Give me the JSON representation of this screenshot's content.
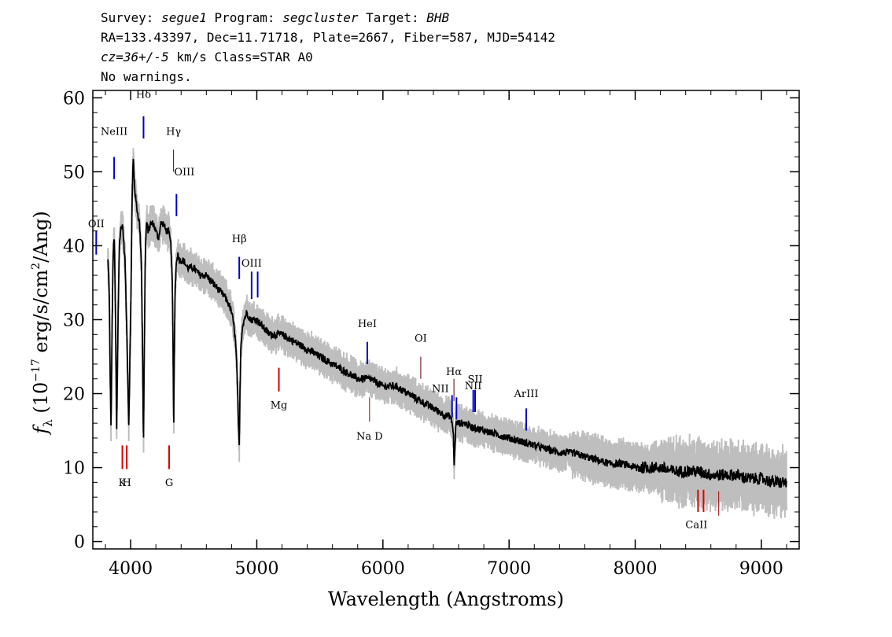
{
  "header": {
    "line1": {
      "survey_label": "Survey: ",
      "survey": "segue1",
      "program_label": " Program: ",
      "program": "segcluster",
      "target_label": " Target: ",
      "target": "BHB"
    },
    "line2": "RA=133.43397, Dec=11.71718, Plate=2667, Fiber=587, MJD=54142",
    "line3": {
      "cz": "cz=36+/-5",
      "rest": " km/s Class=STAR A0"
    },
    "line4": "No warnings."
  },
  "chart_data": {
    "type": "line",
    "xlabel": "Wavelength (Angstroms)",
    "ylabel": "f_λ (10^-17 erg/s/cm^2/Ang)",
    "xlim": [
      3700,
      9300
    ],
    "ylim": [
      -1,
      61
    ],
    "xticks": [
      4000,
      5000,
      6000,
      7000,
      8000,
      9000
    ],
    "yticks": [
      0,
      10,
      20,
      30,
      40,
      50,
      60
    ],
    "grid": false,
    "legend": "none",
    "colors": {
      "flux": "#000000",
      "error": "#bebebe",
      "emission": "#0000cc",
      "absorption": "#dd0000"
    },
    "series": [
      {
        "x": [
          3820,
          3830,
          3838,
          3845,
          3850,
          3860,
          3870,
          3880,
          3889,
          3900,
          3910,
          3920,
          3935,
          3955,
          3970,
          3985,
          4000,
          4010,
          4020,
          4035,
          4050,
          4070,
          4085,
          4095,
          4101,
          4108,
          4115,
          4125,
          4140,
          4160,
          4180,
          4200,
          4220,
          4240,
          4260,
          4280,
          4300,
          4320,
          4330,
          4336,
          4341,
          4346,
          4352,
          4360,
          4370,
          4390,
          4420,
          4450,
          4500,
          4550,
          4600,
          4650,
          4700,
          4750,
          4780,
          4800,
          4820,
          4835,
          4845,
          4855,
          4861,
          4867,
          4873,
          4885,
          4900,
          4920,
          4950,
          4980,
          5000,
          5050,
          5100,
          5150,
          5200,
          5300,
          5400,
          5500,
          5600,
          5700,
          5800,
          5900,
          6000,
          6100,
          6200,
          6300,
          6400,
          6500,
          6530,
          6550,
          6560,
          6565,
          6570,
          6580,
          6600,
          6650,
          6700,
          6800,
          6900,
          7000,
          7100,
          7200,
          7300,
          7400,
          7500,
          7600,
          7700,
          7800,
          7900,
          8000,
          8100,
          8200,
          8300,
          8400,
          8500,
          8600,
          8700,
          8800,
          8900,
          9000,
          9100,
          9200
        ],
        "y": [
          38,
          34,
          22,
          15,
          25,
          38,
          42,
          30,
          15,
          30,
          40,
          42,
          43,
          38,
          28,
          16,
          30,
          45,
          52,
          47,
          45,
          43,
          38,
          25,
          12,
          25,
          38,
          43,
          42,
          43,
          43,
          42,
          41,
          43,
          43,
          42,
          42,
          40,
          35,
          26,
          14,
          25,
          34,
          37,
          39,
          38,
          38,
          37,
          37,
          36,
          36,
          35,
          34,
          33,
          32,
          31,
          29,
          26,
          22,
          15,
          13,
          20,
          26,
          29,
          30,
          31,
          30,
          30,
          30,
          29,
          28,
          28,
          28,
          27,
          26,
          25,
          24,
          23,
          22,
          22,
          21,
          21,
          20,
          19,
          18,
          17,
          17,
          16,
          14,
          10,
          13,
          16,
          16,
          16,
          15.5,
          15,
          14.5,
          14,
          13.5,
          13,
          12.5,
          12,
          12,
          11.5,
          11,
          10.5,
          10.5,
          10,
          10,
          10,
          9.5,
          9.5,
          9.5,
          9,
          9,
          9,
          8.5,
          8.5,
          8,
          8
        ]
      }
    ],
    "annotations": [
      {
        "label": "NeIII",
        "x": 3869,
        "type": "emission"
      },
      {
        "label": "Hδ",
        "x": 4102,
        "type": "emission"
      },
      {
        "label": "Hγ",
        "x": 4340,
        "type": "thin"
      },
      {
        "label": "OIII",
        "x": 4363,
        "type": "emission"
      },
      {
        "label": "Hβ",
        "x": 4861,
        "type": "emission"
      },
      {
        "label": "OIII",
        "x": 4959,
        "type": "emission"
      },
      {
        "label": "",
        "x": 5007,
        "type": "emission"
      },
      {
        "label": "HeI",
        "x": 5876,
        "type": "emission"
      },
      {
        "label": "OI",
        "x": 6300,
        "type": "thin"
      },
      {
        "label": "NII",
        "x": 6548,
        "type": "emission"
      },
      {
        "label": "Hα",
        "x": 6563,
        "type": "thin"
      },
      {
        "label": "",
        "x": 6583,
        "type": "emission"
      },
      {
        "label": "NII",
        "x": 6716,
        "type": "emission"
      },
      {
        "label": "SII",
        "x": 6731,
        "type": "emission"
      },
      {
        "label": "ArIII",
        "x": 7136,
        "type": "emission"
      },
      {
        "label": "OII",
        "x": 3727,
        "type": "emission"
      },
      {
        "label": "K",
        "x": 3934,
        "type": "absorption"
      },
      {
        "label": "H",
        "x": 3969,
        "type": "absorption"
      },
      {
        "label": "G",
        "x": 4305,
        "type": "absorption"
      },
      {
        "label": "Mg",
        "x": 5175,
        "type": "absorption"
      },
      {
        "label": "Na  D",
        "x": 5894,
        "type": "thin-absorption"
      },
      {
        "label": "CaII",
        "x": 8498,
        "type": "absorption"
      },
      {
        "label": "",
        "x": 8542,
        "type": "absorption"
      },
      {
        "label": "",
        "x": 8662,
        "type": "thin-absorption"
      }
    ]
  }
}
